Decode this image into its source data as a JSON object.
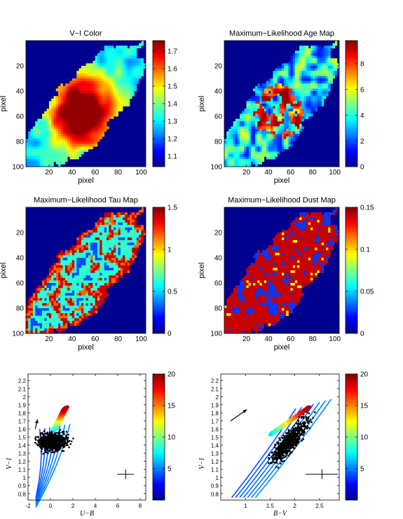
{
  "colormap": [
    "#00008f",
    "#0000ff",
    "#0080ff",
    "#00ffff",
    "#80ff80",
    "#ffff00",
    "#ff8000",
    "#ff0000",
    "#800000"
  ],
  "chart_data": [
    {
      "id": "p1",
      "type": "heatmap",
      "title": "V−I Color",
      "xlabel": "pixel",
      "ylabel": "pixel",
      "xticks": [
        20,
        40,
        60,
        80,
        100
      ],
      "yticks": [
        20,
        40,
        60,
        80,
        100
      ],
      "xlim": [
        0,
        104
      ],
      "ylim": [
        0,
        100
      ],
      "colorbar": {
        "range": [
          1.04,
          1.76
        ],
        "ticks": [
          "1.1",
          "1.2",
          "1.3",
          "1.4",
          "1.5",
          "1.6",
          "1.7"
        ],
        "tick_values": [
          1.1,
          1.2,
          1.3,
          1.4,
          1.5,
          1.6,
          1.7
        ]
      },
      "peak": {
        "x": 48,
        "y": 56,
        "value": 1.75
      }
    },
    {
      "id": "p2",
      "type": "heatmap",
      "title": "Maximum−Likelihood Age Map",
      "xlabel": "pixel",
      "ylabel": "pixel",
      "xticks": [
        20,
        40,
        60,
        80,
        100
      ],
      "yticks": [
        20,
        40,
        60,
        80,
        100
      ],
      "xlim": [
        0,
        104
      ],
      "ylim": [
        0,
        100
      ],
      "colorbar": {
        "range": [
          0,
          9.8
        ],
        "ticks": [
          "0",
          "2",
          "4",
          "6",
          "8"
        ],
        "tick_values": [
          0,
          2,
          4,
          6,
          8
        ]
      }
    },
    {
      "id": "p3",
      "type": "heatmap",
      "title": "Maximum−Likelihood Tau Map",
      "xlabel": "pixel",
      "ylabel": "pixel",
      "xticks": [
        20,
        40,
        60,
        80,
        100
      ],
      "yticks": [
        20,
        40,
        60,
        80,
        100
      ],
      "xlim": [
        0,
        104
      ],
      "ylim": [
        0,
        100
      ],
      "colorbar": {
        "range": [
          0,
          1.5
        ],
        "ticks": [
          "0",
          "0.5",
          "1",
          "1.5"
        ],
        "tick_values": [
          0,
          0.5,
          1,
          1.5
        ]
      }
    },
    {
      "id": "p4",
      "type": "heatmap",
      "title": "Maximum−Likelihood Dust Map",
      "xlabel": "pixel",
      "ylabel": "pixel",
      "xticks": [
        20,
        40,
        60,
        80,
        100
      ],
      "yticks": [
        20,
        40,
        60,
        80,
        100
      ],
      "xlim": [
        0,
        104
      ],
      "ylim": [
        0,
        100
      ],
      "colorbar": {
        "range": [
          0,
          0.15
        ],
        "ticks": [
          "0",
          "0.05",
          "0.1",
          "0.15"
        ],
        "tick_values": [
          0,
          0.05,
          0.1,
          0.15
        ]
      }
    },
    {
      "id": "p5",
      "type": "scatter",
      "xlabel": "U−B",
      "ylabel": "V−I",
      "xlim": [
        -2,
        8.5
      ],
      "ylim": [
        0.72,
        2.28
      ],
      "xticks": [
        -2,
        0,
        2,
        4,
        6,
        8
      ],
      "yticks": [
        0.8,
        0.9,
        1,
        1.1,
        1.2,
        1.3,
        1.4,
        1.5,
        1.6,
        1.7,
        1.8,
        1.9,
        2,
        2.1,
        2.2
      ],
      "colorbar": {
        "range": [
          0,
          20
        ],
        "ticks": [
          "5",
          "10",
          "15",
          "20"
        ],
        "tick_values": [
          5,
          10,
          15,
          20
        ]
      },
      "errorbar": {
        "x": 6.7,
        "y": 1.04,
        "dx": 0.75,
        "dy": 0.06
      },
      "arrow": {
        "x1": -1.35,
        "y1": 1.6,
        "x2": -1.15,
        "y2": 1.72
      },
      "data_cloud": {
        "center": [
          0.2,
          1.44
        ],
        "spread": [
          0.9,
          0.08
        ]
      },
      "model_tracks_note": ""
    },
    {
      "id": "p6",
      "type": "scatter",
      "xlabel": "B−V",
      "ylabel": "V−I",
      "xlim": [
        0.5,
        2.9
      ],
      "ylim": [
        0.72,
        2.28
      ],
      "xticks": [
        1,
        1.5,
        2,
        2.5
      ],
      "yticks": [
        0.8,
        0.9,
        1,
        1.1,
        1.2,
        1.3,
        1.4,
        1.5,
        1.6,
        1.7,
        1.8,
        1.9,
        2,
        2.1,
        2.2
      ],
      "colorbar": {
        "range": [
          0,
          20
        ],
        "ticks": [
          "5",
          "10",
          "15",
          "20"
        ],
        "tick_values": [
          5,
          10,
          15,
          20
        ]
      },
      "errorbar": {
        "x": 2.55,
        "y": 1.04,
        "dx": 0.33,
        "dy": 0.06
      },
      "arrow": {
        "x1": 0.7,
        "y1": 1.7,
        "x2": 1.03,
        "y2": 1.84
      },
      "data_cloud": {
        "center": [
          1.9,
          1.45
        ],
        "spread": [
          0.25,
          0.1
        ]
      }
    }
  ]
}
